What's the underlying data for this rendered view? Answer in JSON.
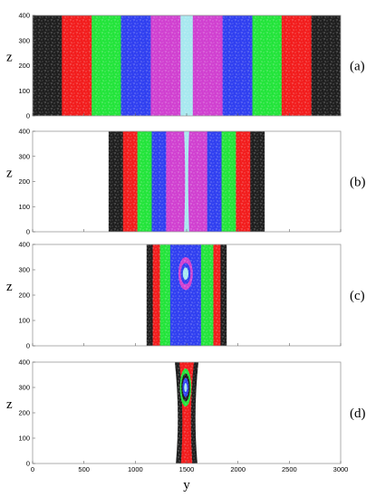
{
  "chart_data": {
    "type": "heatmap",
    "colors": {
      "black": "#1e1e1e",
      "red": "#f21c1c",
      "green": "#22e43a",
      "blue": "#2f3ff0",
      "magenta": "#d040d0",
      "cyan": "#a7e8ef"
    },
    "xlim": [
      0,
      3000
    ],
    "ylim": [
      0,
      400
    ],
    "x_ticks": [
      0,
      500,
      1000,
      1500,
      2000,
      2500,
      3000
    ],
    "y_ticks": [
      0,
      100,
      200,
      300,
      400
    ],
    "xlabel": "y",
    "ylabel": "z",
    "panels": [
      {
        "tag": "(a)",
        "show_x_ticks": false,
        "layers": [
          {
            "color": "black",
            "type": "rect",
            "x0": 0,
            "x1": 3000
          },
          {
            "color": "red",
            "type": "rect",
            "x0": 285,
            "x1": 2715
          },
          {
            "color": "green",
            "type": "rect",
            "x0": 575,
            "x1": 2425
          },
          {
            "color": "blue",
            "type": "rect",
            "x0": 860,
            "x1": 2140
          },
          {
            "color": "magenta",
            "type": "rect",
            "x0": 1150,
            "x1": 1850
          },
          {
            "color": "cyan",
            "type": "rect",
            "x0": 1440,
            "x1": 1560
          }
        ]
      },
      {
        "tag": "(b)",
        "show_x_ticks": false,
        "layers": [
          {
            "color": "black",
            "type": "rect",
            "x0": 740,
            "x1": 2260
          },
          {
            "color": "red",
            "type": "rect",
            "x0": 880,
            "x1": 2120
          },
          {
            "color": "green",
            "type": "rect",
            "x0": 1020,
            "x1": 1980
          },
          {
            "color": "blue",
            "type": "rect",
            "x0": 1160,
            "x1": 1840
          },
          {
            "color": "magenta",
            "type": "rect",
            "x0": 1300,
            "x1": 1700
          },
          {
            "color": "cyan",
            "type": "pinch",
            "cx": 1500,
            "hw_end": 25,
            "hw_mid": 5,
            "z_mid": 230
          }
        ]
      },
      {
        "tag": "(c)",
        "show_x_ticks": false,
        "layers": [
          {
            "color": "black",
            "type": "rect",
            "x0": 1110,
            "x1": 1890
          },
          {
            "color": "red",
            "type": "rect",
            "x0": 1170,
            "x1": 1830
          },
          {
            "color": "green",
            "type": "rect",
            "x0": 1240,
            "x1": 1760
          },
          {
            "color": "blue",
            "type": "rect",
            "x0": 1340,
            "x1": 1640
          },
          {
            "color": "magenta",
            "type": "ellipse",
            "cx": 1490,
            "cz": 285,
            "rx": 70,
            "rz": 65
          },
          {
            "color": "blue",
            "type": "ellipse",
            "cx": 1490,
            "cz": 285,
            "rx": 48,
            "rz": 42
          },
          {
            "color": "cyan",
            "type": "ellipse",
            "cx": 1490,
            "cz": 285,
            "rx": 28,
            "rz": 24
          }
        ]
      },
      {
        "tag": "(d)",
        "show_x_ticks": true,
        "layers": [
          {
            "color": "black",
            "type": "neck",
            "cx": 1500,
            "hw_top": 115,
            "hw_mid": 80,
            "hw_bot": 105
          },
          {
            "color": "red",
            "type": "neck",
            "cx": 1500,
            "hw_top": 70,
            "hw_mid": 40,
            "hw_bot": 55
          },
          {
            "color": "green",
            "type": "ellipse",
            "cx": 1490,
            "cz": 300,
            "rx": 55,
            "rz": 75
          },
          {
            "color": "black",
            "type": "ellipse",
            "cx": 1490,
            "cz": 300,
            "rx": 42,
            "rz": 55
          },
          {
            "color": "blue",
            "type": "ellipse",
            "cx": 1490,
            "cz": 300,
            "rx": 30,
            "rz": 38
          },
          {
            "color": "cyan",
            "type": "ellipse",
            "cx": 1490,
            "cz": 300,
            "rx": 14,
            "rz": 18
          }
        ]
      }
    ]
  }
}
